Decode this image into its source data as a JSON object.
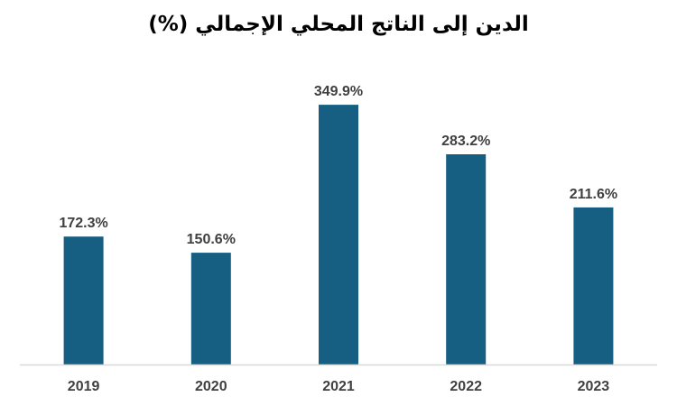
{
  "chart_data": {
    "type": "bar",
    "title": "الدين إلى الناتج المحلي الإجمالي (%)",
    "categories": [
      "2019",
      "2020",
      "2021",
      "2022",
      "2023"
    ],
    "values": [
      172.3,
      150.6,
      349.9,
      283.2,
      211.6
    ],
    "value_labels": [
      "172.3%",
      "150.6%",
      "349.9%",
      "283.2%",
      "211.6%"
    ],
    "bar_color": "#175f82",
    "axis_color": "#d9d9d9",
    "ylim": [
      0,
      350
    ],
    "grid": false,
    "legend": false
  }
}
